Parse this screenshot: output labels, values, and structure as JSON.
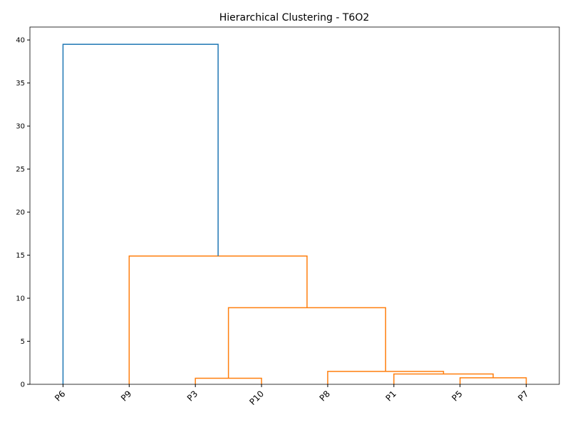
{
  "chart_data": {
    "type": "dendrogram",
    "title": "Hierarchical Clustering - T6O2",
    "ylim": [
      0,
      41.5
    ],
    "yticks": [
      0,
      5,
      10,
      15,
      20,
      25,
      30,
      35,
      40
    ],
    "tree": {
      "height": 39.5,
      "color": "#1f77b4",
      "children": [
        "P6",
        {
          "height": 14.9,
          "color": "#ff7f0e",
          "children": [
            "P9",
            {
              "height": 8.9,
              "color": "#ff7f0e",
              "children": [
                {
                  "height": 0.7,
                  "color": "#ff7f0e",
                  "children": [
                    "P3",
                    "P10"
                  ]
                },
                {
                  "height": 1.5,
                  "color": "#ff7f0e",
                  "children": [
                    "P8",
                    {
                      "height": 1.2,
                      "color": "#ff7f0e",
                      "children": [
                        "P1",
                        {
                          "height": 0.75,
                          "color": "#ff7f0e",
                          "children": [
                            "P5",
                            "P7"
                          ]
                        }
                      ]
                    }
                  ]
                }
              ]
            }
          ]
        }
      ]
    }
  }
}
